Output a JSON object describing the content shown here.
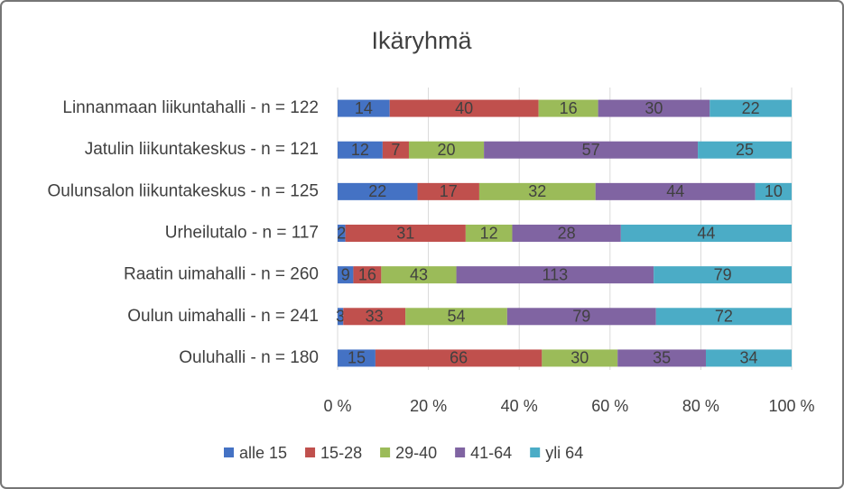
{
  "chart_data": {
    "type": "bar",
    "orientation": "horizontal",
    "stacked": "percent",
    "title": "Ikäryhmä",
    "categories": [
      "Linnanmaan liikuntahalli - n = 122",
      "Jatulin liikuntakeskus - n = 121",
      "Oulunsalon liikuntakeskus - n = 125",
      "Urheilutalo - n = 117",
      "Raatin uimahalli - n = 260",
      "Oulun uimahalli - n = 241",
      "Ouluhalli - n = 180"
    ],
    "series": [
      {
        "name": "alle 15",
        "color": "#4472c4",
        "values": [
          14,
          12,
          22,
          2,
          9,
          3,
          15
        ]
      },
      {
        "name": "15-28",
        "color": "#c0504d",
        "values": [
          40,
          7,
          17,
          31,
          16,
          33,
          66
        ]
      },
      {
        "name": "29-40",
        "color": "#9bbb59",
        "values": [
          16,
          20,
          32,
          12,
          43,
          54,
          30
        ]
      },
      {
        "name": "41-64",
        "color": "#8064a2",
        "values": [
          30,
          57,
          44,
          28,
          113,
          79,
          35
        ]
      },
      {
        "name": "yli 64",
        "color": "#4bacc6",
        "values": [
          22,
          25,
          10,
          44,
          79,
          72,
          34
        ]
      }
    ],
    "xlim": [
      0,
      100
    ],
    "xticks": [
      {
        "value": 0,
        "label": "0 %"
      },
      {
        "value": 20,
        "label": "20 %"
      },
      {
        "value": 40,
        "label": "40 %"
      },
      {
        "value": 60,
        "label": "60 %"
      },
      {
        "value": 80,
        "label": "80 %"
      },
      {
        "value": 100,
        "label": "100 %"
      }
    ],
    "grid": true,
    "legend": "bottom"
  }
}
